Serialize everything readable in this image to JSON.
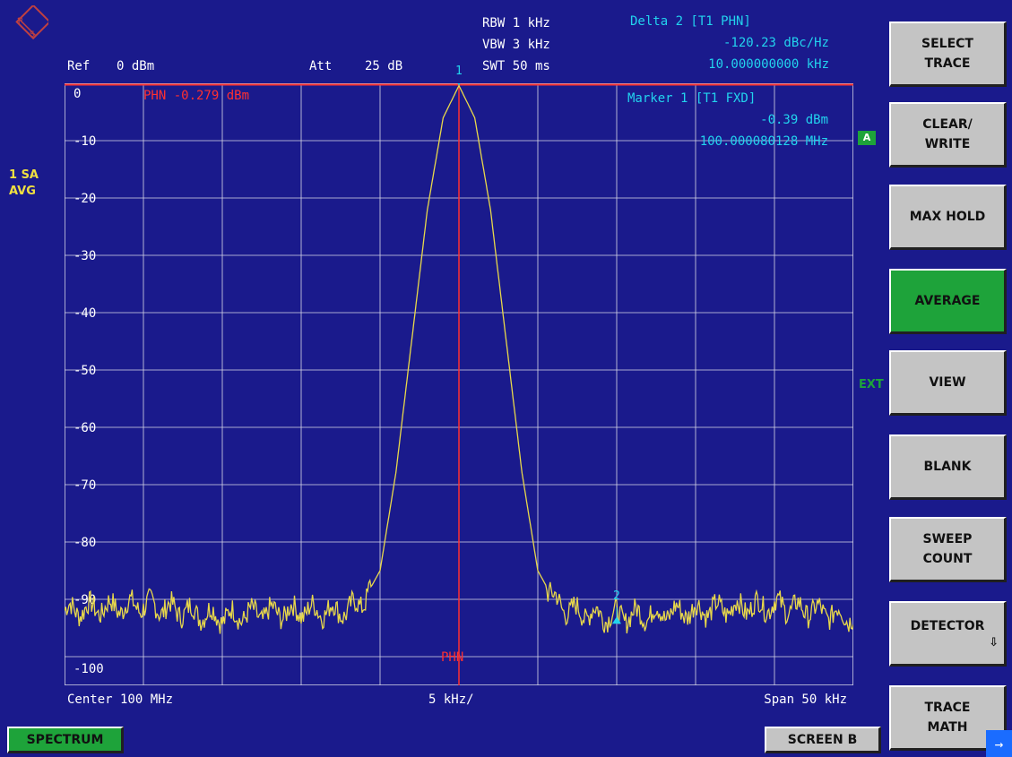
{
  "header": {
    "ref_label": "Ref",
    "ref_value": "0 dBm",
    "att_label": "Att",
    "att_value": "25 dB",
    "rbw": "RBW 1 kHz",
    "vbw": "VBW 3 kHz",
    "swt": "SWT 50 ms",
    "delta_title": "Delta 2 [T1 PHN]",
    "delta_value": "-120.23 dBc/Hz",
    "delta_freq": "10.000000000 kHz",
    "marker_title": "Marker 1 [T1 FXD]",
    "marker_value": "-0.39 dBm",
    "marker_freq": "100.000080128 MHz",
    "marker1_label": "1",
    "marker2_label": "2"
  },
  "trace_info": {
    "line1": "1 SA",
    "line2": "AVG"
  },
  "plot": {
    "phn_line_label": "PHN -0.279 dBm",
    "phn_marker_label": "PHN",
    "y_ticks": [
      "0",
      "-10",
      "-20",
      "-30",
      "-40",
      "-50",
      "-60",
      "-70",
      "-80",
      "-90",
      "-100"
    ],
    "footer_center": "Center 100 MHz",
    "footer_div": "5 kHz/",
    "footer_span": "Span 50 kHz",
    "colors": {
      "background": "#1a1a8c",
      "grid": "#d8d8e8",
      "trace": "#e8d84a",
      "ref_line": "#ff3030",
      "marker": "#22d3ee"
    }
  },
  "chart_data": {
    "type": "line",
    "x_unit": "kHz offset from center",
    "xlim": [
      -25,
      25
    ],
    "ylim": [
      -105,
      0
    ],
    "reference_level_dbm": 0,
    "phn_level_dbm": -0.279,
    "peak": {
      "x": 0,
      "y": -0.39
    },
    "noise_floor": -92,
    "series": [
      {
        "values_x": [
          -25,
          -20,
          -15,
          -10,
          -7,
          -6,
          -5,
          -4,
          -3,
          -2,
          -1,
          0,
          1,
          2,
          3,
          4,
          5,
          6,
          7,
          10,
          15,
          20,
          25
        ],
        "values_y": [
          -92,
          -91,
          -93,
          -92,
          -92,
          -90,
          -85,
          -68,
          -45,
          -22,
          -6,
          -0.4,
          -6,
          -22,
          -45,
          -68,
          -85,
          -90,
          -92,
          -93,
          -92,
          -91,
          -93
        ]
      }
    ]
  },
  "side_tags": {
    "a_tag": "A",
    "ext_tag": "EXT"
  },
  "softkeys": [
    {
      "line1": "SELECT",
      "line2": "TRACE",
      "active": false
    },
    {
      "line1": "CLEAR/",
      "line2": "WRITE",
      "active": false
    },
    {
      "line1": "MAX HOLD",
      "line2": "",
      "active": false
    },
    {
      "line1": "AVERAGE",
      "line2": "",
      "active": true
    },
    {
      "line1": "VIEW",
      "line2": "",
      "active": false
    },
    {
      "line1": "BLANK",
      "line2": "",
      "active": false
    },
    {
      "line1": "SWEEP",
      "line2": "COUNT",
      "active": false
    },
    {
      "line1": "DETECTOR",
      "line2": "⇩",
      "active": false
    },
    {
      "line1": "TRACE",
      "line2": "MATH",
      "active": false
    }
  ],
  "bottom": {
    "spectrum": "SPECTRUM",
    "screen_b": "SCREEN B",
    "corner_arrow": "→"
  }
}
